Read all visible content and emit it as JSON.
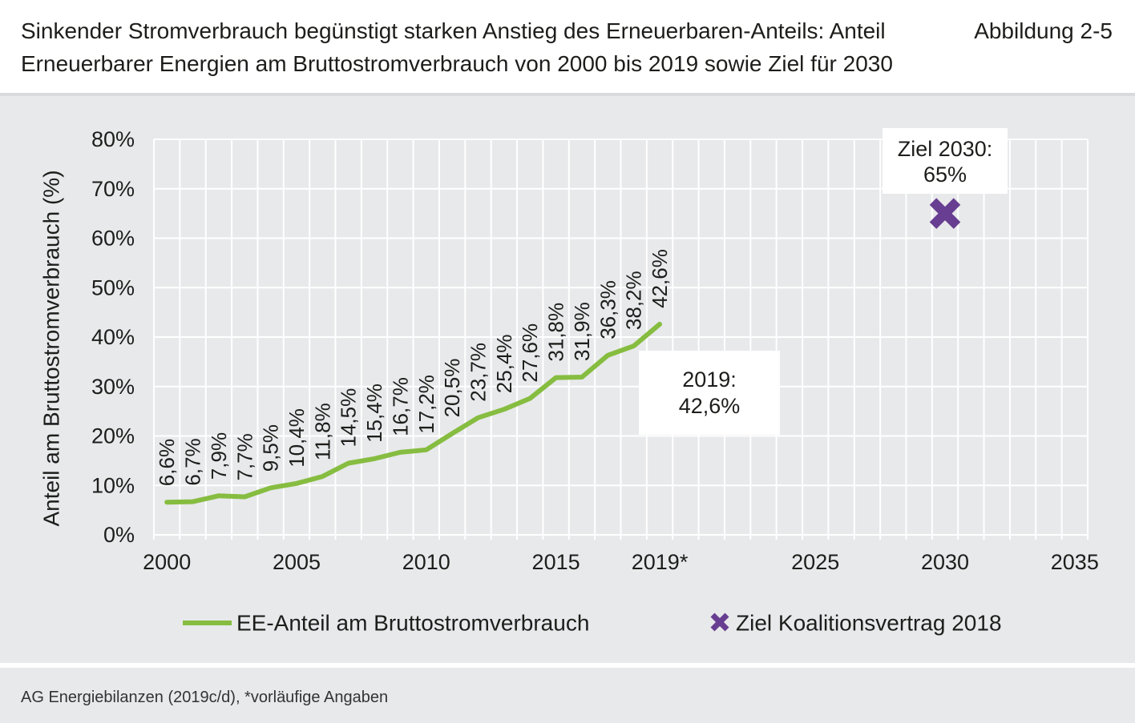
{
  "header": {
    "figure_label": "Abbildung 2-5"
  },
  "chart_data": {
    "type": "line",
    "title": [
      "Sinkender Stromverbrauch begünstigt starken Anstieg des Erneuerbaren-Anteils: Anteil",
      "Erneuerbarer Energien am Bruttostromverbrauch von 2000 bis 2019 sowie Ziel für 2030"
    ],
    "ylabel": "Anteil am Bruttostromverbrauch (%)",
    "xlim": [
      1999.5,
      2035.5
    ],
    "ylim": [
      0,
      80
    ],
    "grid": true,
    "legend_position": "bottom",
    "x_ticks": [
      {
        "value": 2000,
        "label": "2000"
      },
      {
        "value": 2005,
        "label": "2005"
      },
      {
        "value": 2010,
        "label": "2010"
      },
      {
        "value": 2015,
        "label": "2015"
      },
      {
        "value": 2019,
        "label": "2019*"
      },
      {
        "value": 2025,
        "label": "2025"
      },
      {
        "value": 2030,
        "label": "2030"
      },
      {
        "value": 2035,
        "label": "2035"
      }
    ],
    "y_ticks": [
      {
        "value": 0,
        "label": "0%"
      },
      {
        "value": 10,
        "label": "10%"
      },
      {
        "value": 20,
        "label": "20%"
      },
      {
        "value": 30,
        "label": "30%"
      },
      {
        "value": 40,
        "label": "40%"
      },
      {
        "value": 50,
        "label": "50%"
      },
      {
        "value": 60,
        "label": "60%"
      },
      {
        "value": 70,
        "label": "70%"
      },
      {
        "value": 80,
        "label": "80%"
      }
    ],
    "series": [
      {
        "name": "EE-Anteil am Bruttostromverbrauch",
        "color": "#86bd41",
        "x": [
          2000,
          2001,
          2002,
          2003,
          2004,
          2005,
          2006,
          2007,
          2008,
          2009,
          2010,
          2011,
          2012,
          2013,
          2014,
          2015,
          2016,
          2017,
          2018,
          2019
        ],
        "values": [
          6.6,
          6.7,
          7.9,
          7.7,
          9.5,
          10.4,
          11.8,
          14.5,
          15.4,
          16.7,
          17.2,
          20.5,
          23.7,
          25.4,
          27.6,
          31.8,
          31.9,
          36.3,
          38.2,
          42.6
        ],
        "data_labels": [
          "6,6%",
          "6,7%",
          "7,9%",
          "7,7%",
          "9,5%",
          "10,4%",
          "11,8%",
          "14,5%",
          "15,4%",
          "16,7%",
          "17,2%",
          "20,5%",
          "23,7%",
          "25,4%",
          "27,6%",
          "31,8%",
          "31,9%",
          "36,3%",
          "38,2%",
          "42,6%"
        ]
      }
    ],
    "markers": [
      {
        "name": "Ziel Koalitionsvertrag 2018",
        "marker": "x",
        "color": "#673e91",
        "x": 2030,
        "value": 65
      }
    ],
    "annotations": [
      {
        "lines": [
          "Ziel 2030:",
          "65%"
        ]
      },
      {
        "lines": [
          "2019:",
          "42,6%"
        ]
      }
    ]
  },
  "footer": {
    "source": "AG Energiebilanzen (2019c/d), *vorläufige Angaben"
  }
}
